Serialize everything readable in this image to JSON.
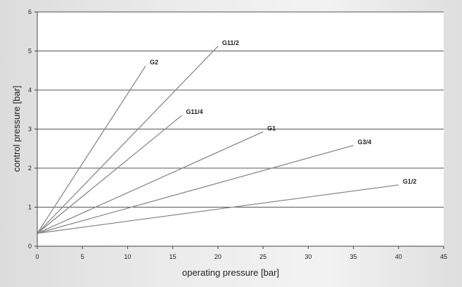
{
  "chart_data": {
    "type": "line",
    "xlabel": "operating pressure [bar]",
    "ylabel": "control pressure [bar]",
    "xlim": [
      0,
      45
    ],
    "ylim": [
      0,
      6
    ],
    "xticks": [
      0,
      5,
      10,
      15,
      20,
      25,
      30,
      35,
      40,
      45
    ],
    "yticks": [
      0,
      1,
      2,
      3,
      4,
      5,
      6
    ],
    "grid": "horizontal",
    "series": [
      {
        "name": "G2",
        "x": [
          0,
          12
        ],
        "y": [
          0.33,
          4.62
        ]
      },
      {
        "name": "G11/2",
        "x": [
          0,
          20
        ],
        "y": [
          0.33,
          5.12
        ]
      },
      {
        "name": "G11/4",
        "x": [
          0,
          16
        ],
        "y": [
          0.33,
          3.35
        ]
      },
      {
        "name": "G1",
        "x": [
          0,
          25
        ],
        "y": [
          0.33,
          2.93
        ]
      },
      {
        "name": "G3/4",
        "x": [
          0,
          35
        ],
        "y": [
          0.33,
          2.58
        ]
      },
      {
        "name": "G1/2",
        "x": [
          0,
          40
        ],
        "y": [
          0.33,
          1.57
        ]
      }
    ]
  },
  "colors": {
    "line": "#8a8a8a",
    "grid": "#555555",
    "axis": "#444444",
    "text": "#222222",
    "plot_bg": "#ffffff"
  }
}
